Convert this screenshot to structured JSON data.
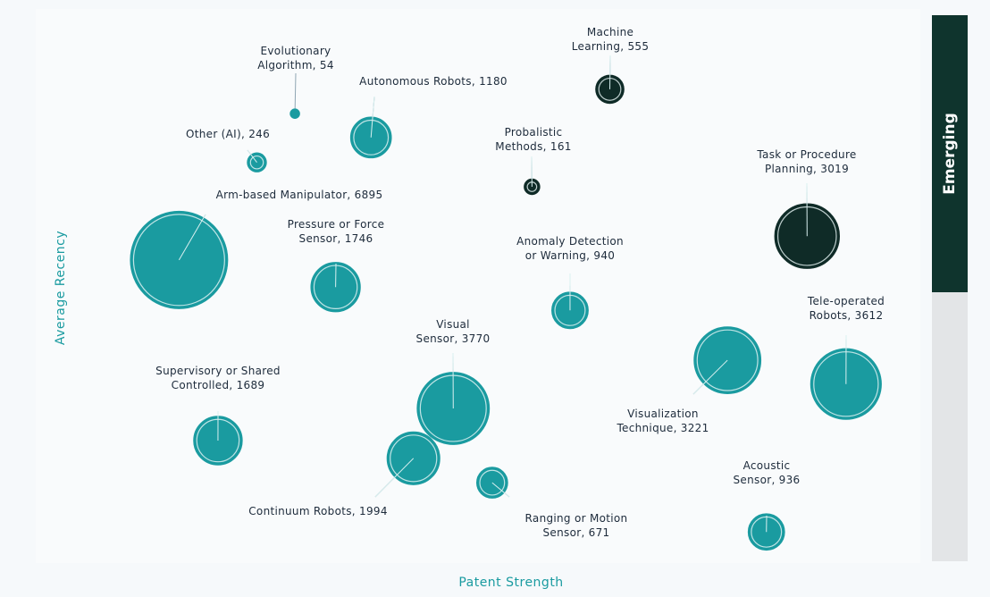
{
  "chart_data": {
    "type": "bubble",
    "x_label": "Patent Strength",
    "y_label": "Average Recency",
    "side_label": "Emerging",
    "xlim": [
      0,
      100
    ],
    "ylim": [
      0,
      100
    ],
    "value_labels": [
      "Evolutionary\nAlgorithm, 54",
      "Autonomous Robots, 1180",
      "Machine\nLearning, 555",
      "Other (AI), 246",
      "Probalistic\nMethods, 161",
      "Task or Procedure\nPlanning, 3019",
      "Arm-based Manipulator, 6895",
      "Pressure or Force\nSensor, 1746",
      "Anomaly Detection\nor Warning, 940",
      "Tele-operated\nRobots, 3612",
      "Visualization\nTechnique, 3221",
      "Visual\nSensor, 3770",
      "Supervisory or Shared\nControlled, 1689",
      "Continuum Robots, 1994",
      "Ranging or Motion\nSensor, 671",
      "Acoustic\nSensor, 936"
    ],
    "sizes": [
      54,
      1180,
      555,
      246,
      161,
      3019,
      6895,
      1746,
      940,
      3612,
      3221,
      3770,
      1689,
      1994,
      671,
      936
    ],
    "x": [
      29.3,
      37.9,
      64.9,
      25.0,
      56.1,
      87.2,
      16.2,
      33.9,
      60.4,
      91.6,
      78.2,
      47.2,
      20.6,
      42.7,
      51.6,
      82.6
    ],
    "y": [
      81.1,
      76.8,
      85.5,
      72.3,
      67.9,
      59.0,
      54.7,
      49.8,
      45.6,
      32.3,
      36.6,
      27.9,
      22.1,
      18.9,
      14.5,
      5.6
    ],
    "colors": [
      "#1a9ba0",
      "#1a9ba0",
      "#0f2b27",
      "#1a9ba0",
      "#0f2b27",
      "#0f2b27",
      "#1a9ba0",
      "#1a9ba0",
      "#1a9ba0",
      "#1a9ba0",
      "#1a9ba0",
      "#1a9ba0",
      "#1a9ba0",
      "#1a9ba0",
      "#1a9ba0",
      "#1a9ba0"
    ]
  }
}
